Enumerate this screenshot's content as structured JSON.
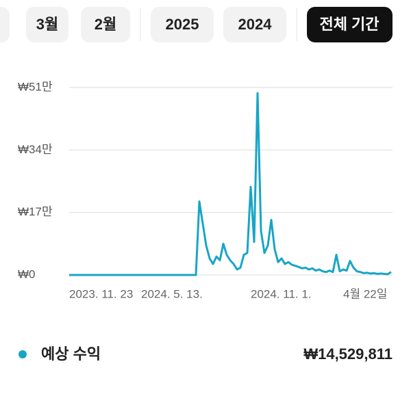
{
  "tabs": [
    "3월",
    "2월",
    "2025",
    "2024",
    "전체 기간"
  ],
  "selected_tab": 4,
  "chart_data": {
    "type": "line",
    "categories": [
      "2023. 11. 23",
      null,
      null,
      null,
      null,
      null,
      null,
      null,
      null,
      null,
      null,
      null,
      null,
      null,
      null,
      null,
      null,
      null,
      null,
      null,
      null,
      "2024. 5. 13.",
      null,
      null,
      null,
      null,
      null,
      null,
      null,
      null,
      null,
      null,
      null,
      null,
      null,
      null,
      null,
      null,
      null,
      null,
      null,
      null,
      null,
      null,
      null,
      null,
      null,
      null,
      null,
      null,
      null,
      null,
      null,
      "2024. 11. 1.",
      null,
      null,
      null,
      null,
      null,
      null,
      null,
      null,
      null,
      null,
      null,
      null,
      null,
      null,
      null,
      null,
      null,
      null,
      null,
      null,
      null,
      null,
      null,
      null,
      null,
      null,
      "4월 22일",
      null,
      null,
      null,
      null,
      null,
      null,
      null,
      null,
      null,
      null,
      null,
      null,
      null,
      null
    ],
    "series": [
      {
        "name": "예상 수익",
        "color": "#17a5c6",
        "values": [
          0,
          0,
          0,
          0,
          0,
          0,
          0,
          0,
          0,
          0,
          0,
          0,
          0,
          0,
          0,
          0,
          0,
          0,
          0,
          0,
          0,
          0,
          0,
          0,
          0,
          0,
          0,
          0,
          0,
          0,
          0,
          0,
          0,
          0,
          0,
          0,
          0,
          0,
          200000,
          140000,
          80000,
          45000,
          30000,
          50000,
          40000,
          85000,
          55000,
          40000,
          30000,
          15000,
          20000,
          55000,
          60000,
          240000,
          90000,
          495000,
          120000,
          60000,
          80000,
          150000,
          70000,
          35000,
          45000,
          30000,
          35000,
          28000,
          25000,
          22000,
          18000,
          20000,
          15000,
          18000,
          12000,
          15000,
          10000,
          8000,
          12000,
          8000,
          55000,
          10000,
          15000,
          12000,
          38000,
          20000,
          10000,
          8000,
          5000,
          6000,
          4000,
          5000,
          3000,
          4000,
          3000,
          2000,
          8000
        ]
      }
    ],
    "ylim": [
      0,
      510000
    ],
    "yticks": [
      {
        "value": 0,
        "label": "₩0"
      },
      {
        "value": 170000,
        "label": "₩17만"
      },
      {
        "value": 340000,
        "label": "₩34만"
      },
      {
        "value": 510000,
        "label": "₩51만"
      }
    ],
    "grid": true,
    "total_label": "₩14,529,811"
  }
}
